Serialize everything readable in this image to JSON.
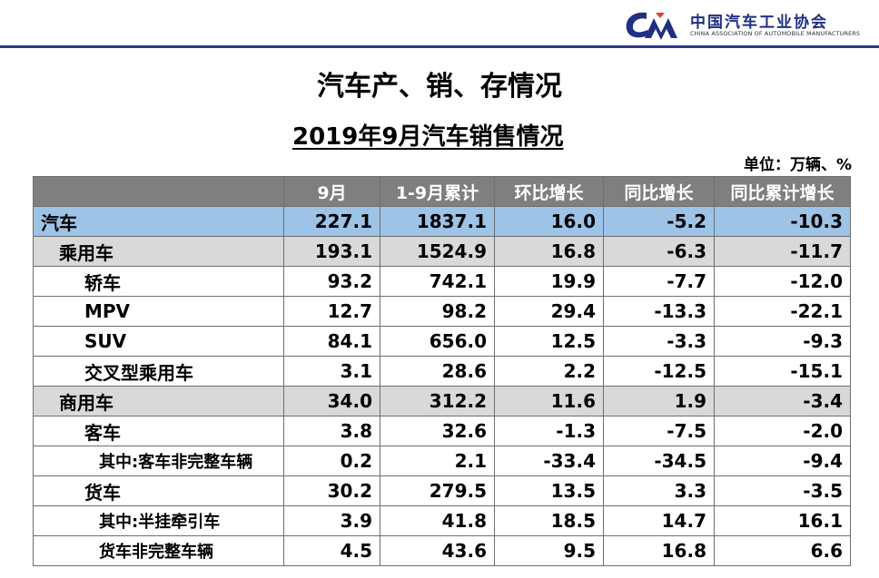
{
  "header": {
    "org_name_cn": "中国汽车工业协会",
    "org_name_en": "CHINA ASSOCIATION OF AUTOMOBILE MANUFACTURERS",
    "brand_color": "#1f2f86",
    "accent_color": "#e0402a"
  },
  "title": "汽车产、销、存情况",
  "subtitle": "2019年9月汽车销售情况",
  "unit": "单位：万辆、%",
  "table": {
    "columns": [
      "",
      "9月",
      "1-9月累计",
      "环比增长",
      "同比增长",
      "同比累计增长"
    ],
    "rows": [
      {
        "name": "汽车",
        "level": 0,
        "values": [
          "227.1",
          "1837.1",
          "16.0",
          "-5.2",
          "-10.3"
        ]
      },
      {
        "name": "乘用车",
        "level": 1,
        "values": [
          "193.1",
          "1524.9",
          "16.8",
          "-6.3",
          "-11.7"
        ]
      },
      {
        "name": "轿车",
        "level": 2,
        "values": [
          "93.2",
          "742.1",
          "19.9",
          "-7.7",
          "-12.0"
        ]
      },
      {
        "name": "MPV",
        "level": 2,
        "values": [
          "12.7",
          "98.2",
          "29.4",
          "-13.3",
          "-22.1"
        ]
      },
      {
        "name": "SUV",
        "level": 2,
        "values": [
          "84.1",
          "656.0",
          "12.5",
          "-3.3",
          "-9.3"
        ]
      },
      {
        "name": "交叉型乘用车",
        "level": 2,
        "values": [
          "3.1",
          "28.6",
          "2.2",
          "-12.5",
          "-15.1"
        ]
      },
      {
        "name": "商用车",
        "level": 1,
        "values": [
          "34.0",
          "312.2",
          "11.6",
          "1.9",
          "-3.4"
        ]
      },
      {
        "name": "客车",
        "level": 2,
        "values": [
          "3.8",
          "32.6",
          "-1.3",
          "-7.5",
          "-2.0"
        ]
      },
      {
        "name": "其中:客车非完整车辆",
        "level": 3,
        "values": [
          "0.2",
          "2.1",
          "-33.4",
          "-34.5",
          "-9.4"
        ]
      },
      {
        "name": "货车",
        "level": 2,
        "values": [
          "30.2",
          "279.5",
          "13.5",
          "3.3",
          "-3.5"
        ]
      },
      {
        "name": "其中:半挂牵引车",
        "level": 3,
        "values": [
          "3.9",
          "41.8",
          "18.5",
          "14.7",
          "16.1"
        ]
      },
      {
        "name": "货车非完整车辆",
        "level": 3,
        "values": [
          "4.5",
          "43.6",
          "9.5",
          "16.8",
          "6.6"
        ]
      }
    ]
  }
}
